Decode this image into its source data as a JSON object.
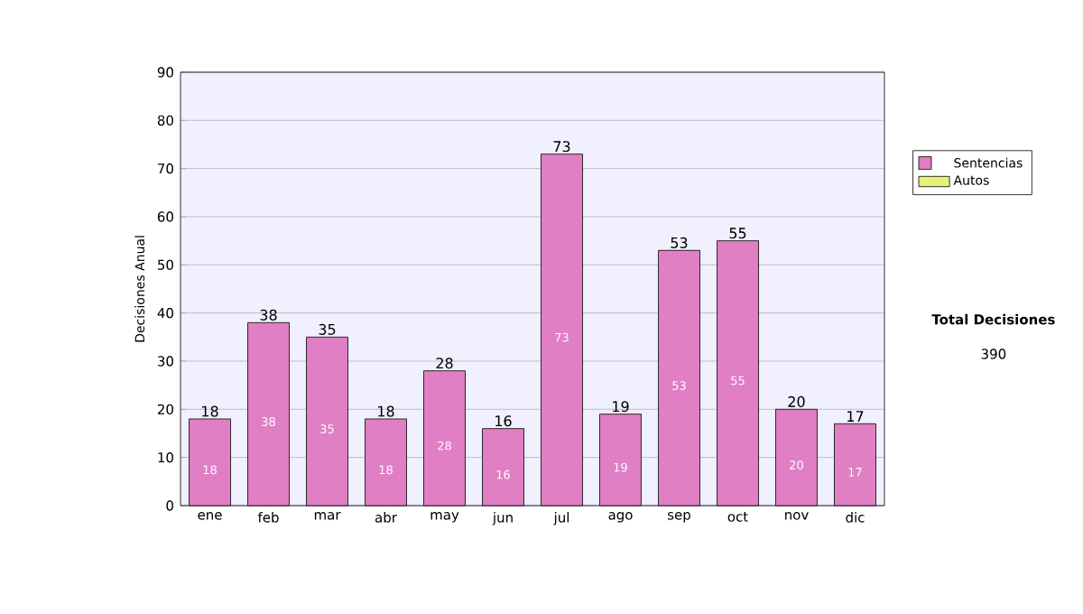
{
  "chart_data": {
    "type": "bar",
    "ylabel": "Decisiones Anual",
    "categories": [
      "ene",
      "feb",
      "mar",
      "abr",
      "may",
      "jun",
      "jul",
      "ago",
      "sep",
      "oct",
      "nov",
      "dic"
    ],
    "series": [
      {
        "name": "Sentencias",
        "color": "#e07fc4",
        "values": [
          18,
          38,
          35,
          18,
          28,
          16,
          73,
          19,
          53,
          55,
          20,
          17
        ]
      },
      {
        "name": "Autos",
        "color": "#e6f07a",
        "values": [
          null,
          null,
          null,
          null,
          null,
          null,
          null,
          null,
          null,
          null,
          null,
          null
        ]
      }
    ],
    "stacked": true,
    "data_labels": true,
    "totals": [
      "18",
      "38",
      "35",
      "18",
      "28",
      "16",
      "73",
      "19",
      "53",
      "55",
      "20",
      "17"
    ],
    "ylim": [
      0,
      90
    ],
    "yticks": [
      0,
      10,
      20,
      30,
      40,
      50,
      60,
      70,
      80,
      90
    ],
    "grid": "y",
    "legend": "right",
    "annotations": [
      "Total Decisiones",
      "390"
    ]
  }
}
